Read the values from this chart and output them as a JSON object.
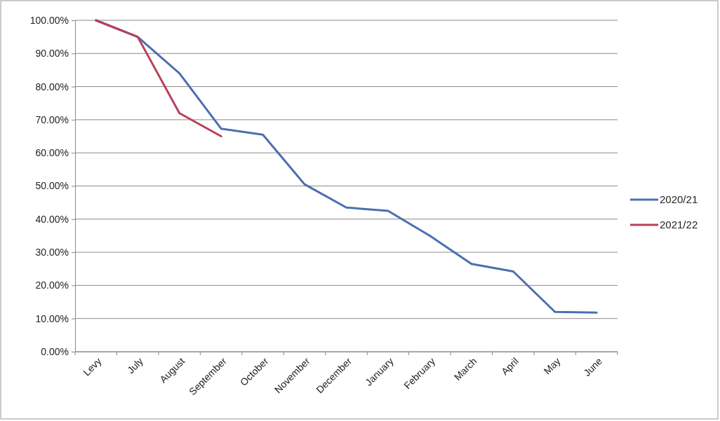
{
  "chart_data": {
    "type": "line",
    "categories": [
      "Levy",
      "July",
      "August",
      "September",
      "October",
      "November",
      "December",
      "January",
      "February",
      "March",
      "April",
      "May",
      "June"
    ],
    "series": [
      {
        "name": "2020/21",
        "color": "#4a6fb0",
        "values": [
          100,
          95,
          84,
          67.3,
          65.5,
          50.5,
          43.5,
          42.5,
          35,
          26.5,
          24.2,
          12,
          11.8
        ]
      },
      {
        "name": "2021/22",
        "color": "#b8405a",
        "values": [
          100,
          95,
          72,
          65,
          null,
          null,
          null,
          null,
          null,
          null,
          null,
          null,
          null
        ]
      }
    ],
    "ylim": [
      0,
      100
    ],
    "yticks": [
      {
        "value": 0,
        "label": "0.00%"
      },
      {
        "value": 10,
        "label": "10.00%"
      },
      {
        "value": 20,
        "label": "20.00%"
      },
      {
        "value": 30,
        "label": "30.00%"
      },
      {
        "value": 40,
        "label": "40.00%"
      },
      {
        "value": 50,
        "label": "50.00%"
      },
      {
        "value": 60,
        "label": "60.00%"
      },
      {
        "value": 70,
        "label": "70.00%"
      },
      {
        "value": 80,
        "label": "80.00%"
      },
      {
        "value": 90,
        "label": "90.00%"
      },
      {
        "value": 100,
        "label": "100.00%"
      }
    ],
    "grid": "y",
    "legend": "right",
    "marker": "none",
    "line_style": "solid"
  }
}
